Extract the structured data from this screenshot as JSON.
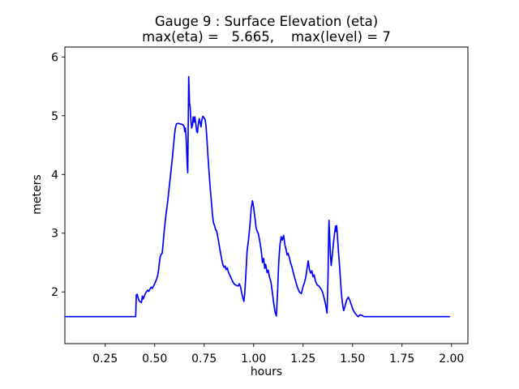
{
  "figure": {
    "title": "Gauge 9 : Surface Elevation (eta)",
    "subtitle": "max(eta) =   5.665,    max(level) = 7",
    "xlabel": "hours",
    "ylabel": "meters"
  },
  "chart_data": {
    "type": "line",
    "title": "Gauge 9 : Surface Elevation (eta)",
    "subtitle": "max(eta) =   5.665,    max(level) = 7",
    "xlabel": "hours",
    "ylabel": "meters",
    "max_eta": 5.665,
    "max_level": 7,
    "xlim": [
      0.046,
      2.083
    ],
    "ylim": [
      1.12,
      6.17
    ],
    "x_ticks": [
      0.25,
      0.5,
      0.75,
      1.0,
      1.25,
      1.5,
      1.75,
      2.0
    ],
    "x_tick_labels": [
      "0.25",
      "0.50",
      "0.75",
      "1.00",
      "1.25",
      "1.50",
      "1.75",
      "2.00"
    ],
    "y_ticks": [
      2,
      3,
      4,
      5,
      6
    ],
    "y_tick_labels": [
      "2",
      "3",
      "4",
      "5",
      "6"
    ],
    "grid": false,
    "legend": "none",
    "line_color": "#0000ff",
    "background_color": "#ffffff",
    "series": [
      {
        "name": "eta",
        "points": [
          [
            0.046,
            1.58
          ],
          [
            0.1,
            1.58
          ],
          [
            0.2,
            1.58
          ],
          [
            0.3,
            1.58
          ],
          [
            0.404,
            1.58
          ],
          [
            0.407,
            1.95
          ],
          [
            0.411,
            1.96
          ],
          [
            0.416,
            1.9
          ],
          [
            0.421,
            1.85
          ],
          [
            0.427,
            1.83
          ],
          [
            0.433,
            1.82
          ],
          [
            0.438,
            1.93
          ],
          [
            0.442,
            1.88
          ],
          [
            0.447,
            1.92
          ],
          [
            0.452,
            1.97
          ],
          [
            0.458,
            2.0
          ],
          [
            0.464,
            2.03
          ],
          [
            0.47,
            2.01
          ],
          [
            0.476,
            2.05
          ],
          [
            0.482,
            2.08
          ],
          [
            0.488,
            2.06
          ],
          [
            0.494,
            2.1
          ],
          [
            0.5,
            2.14
          ],
          [
            0.505,
            2.18
          ],
          [
            0.51,
            2.22
          ],
          [
            0.515,
            2.28
          ],
          [
            0.52,
            2.38
          ],
          [
            0.524,
            2.5
          ],
          [
            0.528,
            2.6
          ],
          [
            0.533,
            2.64
          ],
          [
            0.538,
            2.66
          ],
          [
            0.542,
            2.8
          ],
          [
            0.549,
            3.07
          ],
          [
            0.557,
            3.32
          ],
          [
            0.566,
            3.55
          ],
          [
            0.574,
            3.8
          ],
          [
            0.582,
            4.05
          ],
          [
            0.59,
            4.3
          ],
          [
            0.598,
            4.6
          ],
          [
            0.604,
            4.78
          ],
          [
            0.61,
            4.86
          ],
          [
            0.618,
            4.87
          ],
          [
            0.63,
            4.86
          ],
          [
            0.642,
            4.85
          ],
          [
            0.648,
            4.82
          ],
          [
            0.652,
            4.73
          ],
          [
            0.655,
            4.79
          ],
          [
            0.658,
            4.68
          ],
          [
            0.661,
            4.45
          ],
          [
            0.664,
            4.18
          ],
          [
            0.667,
            4.03
          ],
          [
            0.669,
            4.7
          ],
          [
            0.671,
            5.35
          ],
          [
            0.672,
            5.665
          ],
          [
            0.674,
            5.45
          ],
          [
            0.676,
            5.22
          ],
          [
            0.679,
            5.16
          ],
          [
            0.683,
            4.92
          ],
          [
            0.687,
            4.79
          ],
          [
            0.691,
            4.84
          ],
          [
            0.695,
            4.98
          ],
          [
            0.699,
            4.89
          ],
          [
            0.703,
            4.98
          ],
          [
            0.708,
            4.86
          ],
          [
            0.712,
            4.74
          ],
          [
            0.716,
            4.71
          ],
          [
            0.72,
            4.84
          ],
          [
            0.725,
            4.95
          ],
          [
            0.73,
            4.88
          ],
          [
            0.734,
            4.81
          ],
          [
            0.738,
            4.92
          ],
          [
            0.743,
            4.99
          ],
          [
            0.749,
            4.97
          ],
          [
            0.755,
            4.93
          ],
          [
            0.759,
            4.83
          ],
          [
            0.764,
            4.6
          ],
          [
            0.769,
            4.32
          ],
          [
            0.775,
            4.02
          ],
          [
            0.781,
            3.76
          ],
          [
            0.787,
            3.52
          ],
          [
            0.792,
            3.32
          ],
          [
            0.797,
            3.18
          ],
          [
            0.803,
            3.12
          ],
          [
            0.808,
            3.06
          ],
          [
            0.813,
            3.04
          ],
          [
            0.817,
            2.97
          ],
          [
            0.822,
            2.88
          ],
          [
            0.827,
            2.77
          ],
          [
            0.833,
            2.66
          ],
          [
            0.839,
            2.55
          ],
          [
            0.845,
            2.46
          ],
          [
            0.85,
            2.42
          ],
          [
            0.856,
            2.44
          ],
          [
            0.861,
            2.38
          ],
          [
            0.867,
            2.41
          ],
          [
            0.873,
            2.33
          ],
          [
            0.879,
            2.29
          ],
          [
            0.887,
            2.23
          ],
          [
            0.895,
            2.17
          ],
          [
            0.903,
            2.13
          ],
          [
            0.913,
            2.11
          ],
          [
            0.922,
            2.1
          ],
          [
            0.928,
            2.14
          ],
          [
            0.934,
            2.08
          ],
          [
            0.94,
            1.98
          ],
          [
            0.946,
            1.89
          ],
          [
            0.951,
            1.84
          ],
          [
            0.956,
            2.02
          ],
          [
            0.961,
            2.3
          ],
          [
            0.967,
            2.7
          ],
          [
            0.974,
            2.88
          ],
          [
            0.981,
            3.12
          ],
          [
            0.988,
            3.42
          ],
          [
            0.994,
            3.55
          ],
          [
            1.0,
            3.44
          ],
          [
            1.004,
            3.33
          ],
          [
            1.008,
            3.23
          ],
          [
            1.012,
            3.1
          ],
          [
            1.017,
            3.04
          ],
          [
            1.023,
            3.0
          ],
          [
            1.03,
            2.88
          ],
          [
            1.038,
            2.72
          ],
          [
            1.045,
            2.5
          ],
          [
            1.051,
            2.57
          ],
          [
            1.056,
            2.4
          ],
          [
            1.061,
            2.47
          ],
          [
            1.068,
            2.33
          ],
          [
            1.074,
            2.37
          ],
          [
            1.08,
            2.25
          ],
          [
            1.087,
            2.18
          ],
          [
            1.093,
            2.03
          ],
          [
            1.1,
            1.84
          ],
          [
            1.108,
            1.66
          ],
          [
            1.115,
            1.59
          ],
          [
            1.121,
            2.0
          ],
          [
            1.127,
            2.5
          ],
          [
            1.133,
            2.8
          ],
          [
            1.139,
            2.94
          ],
          [
            1.145,
            2.88
          ],
          [
            1.152,
            2.96
          ],
          [
            1.158,
            2.8
          ],
          [
            1.164,
            2.72
          ],
          [
            1.169,
            2.63
          ],
          [
            1.174,
            2.66
          ],
          [
            1.181,
            2.58
          ],
          [
            1.187,
            2.49
          ],
          [
            1.194,
            2.42
          ],
          [
            1.201,
            2.32
          ],
          [
            1.211,
            2.2
          ],
          [
            1.221,
            2.08
          ],
          [
            1.231,
            2.0
          ],
          [
            1.241,
            1.97
          ],
          [
            1.249,
            2.08
          ],
          [
            1.257,
            2.16
          ],
          [
            1.264,
            2.26
          ],
          [
            1.27,
            2.4
          ],
          [
            1.276,
            2.53
          ],
          [
            1.282,
            2.38
          ],
          [
            1.288,
            2.32
          ],
          [
            1.294,
            2.36
          ],
          [
            1.3,
            2.26
          ],
          [
            1.306,
            2.29
          ],
          [
            1.313,
            2.18
          ],
          [
            1.321,
            2.12
          ],
          [
            1.33,
            2.1
          ],
          [
            1.339,
            2.06
          ],
          [
            1.348,
            2.0
          ],
          [
            1.356,
            1.9
          ],
          [
            1.364,
            1.78
          ],
          [
            1.371,
            1.64
          ],
          [
            1.376,
            2.25
          ],
          [
            1.379,
            2.92
          ],
          [
            1.381,
            3.22
          ],
          [
            1.384,
            2.95
          ],
          [
            1.388,
            2.65
          ],
          [
            1.392,
            2.45
          ],
          [
            1.397,
            2.6
          ],
          [
            1.403,
            2.82
          ],
          [
            1.409,
            3.0
          ],
          [
            1.414,
            3.12
          ],
          [
            1.417,
            3.03
          ],
          [
            1.42,
            3.13
          ],
          [
            1.424,
            2.93
          ],
          [
            1.429,
            2.68
          ],
          [
            1.434,
            2.45
          ],
          [
            1.439,
            2.2
          ],
          [
            1.444,
            1.95
          ],
          [
            1.45,
            1.78
          ],
          [
            1.455,
            1.68
          ],
          [
            1.462,
            1.76
          ],
          [
            1.47,
            1.86
          ],
          [
            1.478,
            1.91
          ],
          [
            1.486,
            1.86
          ],
          [
            1.494,
            1.78
          ],
          [
            1.502,
            1.7
          ],
          [
            1.51,
            1.65
          ],
          [
            1.519,
            1.61
          ],
          [
            1.528,
            1.58
          ],
          [
            1.538,
            1.61
          ],
          [
            1.548,
            1.6
          ],
          [
            1.558,
            1.58
          ],
          [
            1.575,
            1.58
          ],
          [
            1.6,
            1.58
          ],
          [
            1.65,
            1.58
          ],
          [
            1.7,
            1.58
          ],
          [
            1.75,
            1.58
          ],
          [
            1.8,
            1.58
          ],
          [
            1.85,
            1.58
          ],
          [
            1.9,
            1.58
          ],
          [
            1.95,
            1.58
          ],
          [
            1.99,
            1.58
          ]
        ]
      }
    ]
  }
}
